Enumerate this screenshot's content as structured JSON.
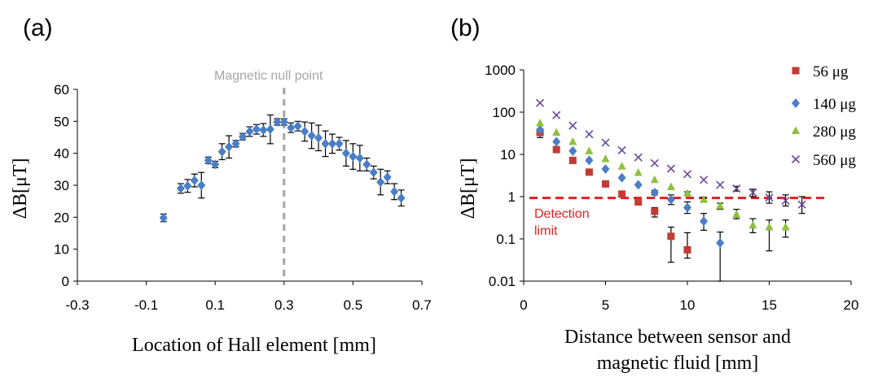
{
  "colors": {
    "blue": "#4a7ec6",
    "red": "#c23b35",
    "green": "#8dc03c",
    "purple": "#6a4a9b",
    "dashed_gray": "#a6a6a6",
    "detection_red": "#e02020"
  },
  "chart_data": [
    {
      "panel": "(a)",
      "type": "scatter",
      "xlabel": "Location of Hall element [mm]",
      "ylabel": "ΔB[μT]",
      "xlim": [
        -0.3,
        0.7
      ],
      "ylim": [
        0,
        60
      ],
      "xticks": [
        "-0.3",
        "-0.1",
        "0.1",
        "0.3",
        "0.5",
        "0.7"
      ],
      "yticks": [
        "0",
        "10",
        "20",
        "30",
        "40",
        "50",
        "60"
      ],
      "annotation": "Magnetic null point",
      "null_point_x": 0.3,
      "grid": false,
      "series": [
        {
          "marker": "diamond",
          "color": "#4a7ec6",
          "points": [
            {
              "x": -0.05,
              "y": 19.8,
              "err": 1.2
            },
            {
              "x": 0.0,
              "y": 29.0,
              "err": 1.5
            },
            {
              "x": 0.02,
              "y": 29.8,
              "err": 2.0
            },
            {
              "x": 0.04,
              "y": 31.5,
              "err": 2.0
            },
            {
              "x": 0.06,
              "y": 30.0,
              "err": 4.0
            },
            {
              "x": 0.08,
              "y": 37.8,
              "err": 1.0
            },
            {
              "x": 0.1,
              "y": 36.5,
              "err": 1.0
            },
            {
              "x": 0.12,
              "y": 40.5,
              "err": 2.5
            },
            {
              "x": 0.14,
              "y": 42.0,
              "err": 3.5
            },
            {
              "x": 0.16,
              "y": 43.0,
              "err": 1.0
            },
            {
              "x": 0.18,
              "y": 45.2,
              "err": 1.0
            },
            {
              "x": 0.2,
              "y": 46.8,
              "err": 1.5
            },
            {
              "x": 0.22,
              "y": 47.5,
              "err": 1.5
            },
            {
              "x": 0.24,
              "y": 47.3,
              "err": 2.0
            },
            {
              "x": 0.26,
              "y": 47.5,
              "err": 4.5
            },
            {
              "x": 0.28,
              "y": 49.8,
              "err": 1.0
            },
            {
              "x": 0.3,
              "y": 49.8,
              "err": 1.0
            },
            {
              "x": 0.32,
              "y": 48.0,
              "err": 1.5
            },
            {
              "x": 0.34,
              "y": 48.5,
              "err": 1.5
            },
            {
              "x": 0.36,
              "y": 46.8,
              "err": 3.0
            },
            {
              "x": 0.38,
              "y": 45.5,
              "err": 4.0
            },
            {
              "x": 0.4,
              "y": 44.8,
              "err": 4.0
            },
            {
              "x": 0.42,
              "y": 43.0,
              "err": 4.0
            },
            {
              "x": 0.44,
              "y": 43.0,
              "err": 3.0
            },
            {
              "x": 0.46,
              "y": 43.0,
              "err": 2.0
            },
            {
              "x": 0.48,
              "y": 40.0,
              "err": 4.0
            },
            {
              "x": 0.5,
              "y": 39.0,
              "err": 4.0
            },
            {
              "x": 0.52,
              "y": 38.5,
              "err": 4.0
            },
            {
              "x": 0.54,
              "y": 36.5,
              "err": 2.0
            },
            {
              "x": 0.56,
              "y": 34.0,
              "err": 2.0
            },
            {
              "x": 0.58,
              "y": 31.0,
              "err": 4.0
            },
            {
              "x": 0.6,
              "y": 32.5,
              "err": 2.0
            },
            {
              "x": 0.62,
              "y": 28.0,
              "err": 2.5
            },
            {
              "x": 0.64,
              "y": 26.0,
              "err": 2.5
            }
          ]
        }
      ]
    },
    {
      "panel": "(b)",
      "type": "scatter",
      "xlabel_line1": "Distance between sensor and",
      "xlabel_line2": "magnetic fluid [mm]",
      "ylabel": "ΔB[μT]",
      "yscale": "log",
      "xlim": [
        0,
        20
      ],
      "ylim": [
        0.01,
        1000
      ],
      "xticks": [
        "0",
        "5",
        "10",
        "15",
        "20"
      ],
      "yticks": [
        "0.01",
        "0.1",
        "1",
        "10",
        "100",
        "1000"
      ],
      "detection_limit": 0.93,
      "detection_label_line1": "Detection",
      "detection_label_line2": "limit",
      "legend_position": "top-right",
      "grid": false,
      "series": [
        {
          "name": "56 μg",
          "marker": "square",
          "color": "#c23b35",
          "points": [
            {
              "x": 1,
              "y": 33,
              "lo": 25,
              "hi": 40
            },
            {
              "x": 2,
              "y": 13,
              "lo": 13,
              "hi": 13
            },
            {
              "x": 3,
              "y": 7.2,
              "lo": 7.2,
              "hi": 7.2
            },
            {
              "x": 4,
              "y": 3.8,
              "lo": 3.8,
              "hi": 3.8
            },
            {
              "x": 5,
              "y": 2.0,
              "lo": 2.0,
              "hi": 2.0
            },
            {
              "x": 6,
              "y": 1.15,
              "lo": 1.15,
              "hi": 1.15
            },
            {
              "x": 7,
              "y": 0.75,
              "lo": 0.7,
              "hi": 0.8
            },
            {
              "x": 8,
              "y": 0.45,
              "lo": 0.33,
              "hi": 0.55
            },
            {
              "x": 9,
              "y": 0.115,
              "lo": 0.028,
              "hi": 0.19
            },
            {
              "x": 10,
              "y": 0.055,
              "lo": 0.035,
              "hi": 0.14
            }
          ]
        },
        {
          "name": "140 μg",
          "marker": "diamond",
          "color": "#4a7ec6",
          "points": [
            {
              "x": 1,
              "y": 38,
              "lo": 38,
              "hi": 38
            },
            {
              "x": 2,
              "y": 20,
              "lo": 20,
              "hi": 20
            },
            {
              "x": 3,
              "y": 12,
              "lo": 12,
              "hi": 12
            },
            {
              "x": 4,
              "y": 7.2,
              "lo": 7.2,
              "hi": 7.2
            },
            {
              "x": 5,
              "y": 4.5,
              "lo": 4.5,
              "hi": 4.5
            },
            {
              "x": 6,
              "y": 2.8,
              "lo": 2.8,
              "hi": 2.8
            },
            {
              "x": 7,
              "y": 1.9,
              "lo": 1.9,
              "hi": 1.9
            },
            {
              "x": 8,
              "y": 1.25,
              "lo": 1.1,
              "hi": 1.4
            },
            {
              "x": 9,
              "y": 0.85,
              "lo": 0.65,
              "hi": 1.1
            },
            {
              "x": 10,
              "y": 0.55,
              "lo": 0.4,
              "hi": 0.75
            },
            {
              "x": 11,
              "y": 0.26,
              "lo": 0.16,
              "hi": 0.4
            },
            {
              "x": 12,
              "y": 0.08,
              "lo": 0.01,
              "hi": 0.145
            }
          ]
        },
        {
          "name": "280 μg",
          "marker": "triangle",
          "color": "#8dc03c",
          "points": [
            {
              "x": 1,
              "y": 55,
              "lo": 55,
              "hi": 55
            },
            {
              "x": 2,
              "y": 33,
              "lo": 33,
              "hi": 33
            },
            {
              "x": 3,
              "y": 20,
              "lo": 20,
              "hi": 20
            },
            {
              "x": 4,
              "y": 12,
              "lo": 12,
              "hi": 12
            },
            {
              "x": 5,
              "y": 7.8,
              "lo": 7.8,
              "hi": 7.8
            },
            {
              "x": 6,
              "y": 5.2,
              "lo": 5.2,
              "hi": 5.2
            },
            {
              "x": 7,
              "y": 3.7,
              "lo": 3.7,
              "hi": 3.7
            },
            {
              "x": 8,
              "y": 2.5,
              "lo": 2.5,
              "hi": 2.5
            },
            {
              "x": 9,
              "y": 1.7,
              "lo": 1.7,
              "hi": 1.7
            },
            {
              "x": 10,
              "y": 1.2,
              "lo": 1.1,
              "hi": 1.3
            },
            {
              "x": 11,
              "y": 0.85,
              "lo": 0.75,
              "hi": 0.95
            },
            {
              "x": 12,
              "y": 0.6,
              "lo": 0.5,
              "hi": 0.7
            },
            {
              "x": 13,
              "y": 0.38,
              "lo": 0.3,
              "hi": 0.5
            },
            {
              "x": 14,
              "y": 0.21,
              "lo": 0.14,
              "hi": 0.3
            },
            {
              "x": 15,
              "y": 0.19,
              "lo": 0.052,
              "hi": 0.28
            },
            {
              "x": 16,
              "y": 0.19,
              "lo": 0.11,
              "hi": 0.28
            }
          ]
        },
        {
          "name": "560 μg",
          "marker": "x",
          "color": "#6a4a9b",
          "points": [
            {
              "x": 1,
              "y": 165,
              "lo": 165,
              "hi": 165
            },
            {
              "x": 2,
              "y": 85,
              "lo": 85,
              "hi": 85
            },
            {
              "x": 3,
              "y": 48,
              "lo": 48,
              "hi": 48
            },
            {
              "x": 4,
              "y": 30,
              "lo": 30,
              "hi": 30
            },
            {
              "x": 5,
              "y": 19,
              "lo": 19,
              "hi": 19
            },
            {
              "x": 6,
              "y": 12.5,
              "lo": 12.5,
              "hi": 12.5
            },
            {
              "x": 7,
              "y": 8.5,
              "lo": 8.5,
              "hi": 8.5
            },
            {
              "x": 8,
              "y": 6.2,
              "lo": 6.2,
              "hi": 6.2
            },
            {
              "x": 9,
              "y": 4.6,
              "lo": 4.6,
              "hi": 4.6
            },
            {
              "x": 10,
              "y": 3.4,
              "lo": 3.4,
              "hi": 3.4
            },
            {
              "x": 11,
              "y": 2.5,
              "lo": 2.5,
              "hi": 2.5
            },
            {
              "x": 12,
              "y": 1.9,
              "lo": 1.9,
              "hi": 1.9
            },
            {
              "x": 13,
              "y": 1.55,
              "lo": 1.35,
              "hi": 1.75
            },
            {
              "x": 14,
              "y": 1.25,
              "lo": 1.0,
              "hi": 1.5
            },
            {
              "x": 15,
              "y": 0.95,
              "lo": 0.7,
              "hi": 1.3
            },
            {
              "x": 16,
              "y": 0.8,
              "lo": 0.6,
              "hi": 1.1
            },
            {
              "x": 17,
              "y": 0.65,
              "lo": 0.4,
              "hi": 1.0
            }
          ]
        }
      ]
    }
  ]
}
